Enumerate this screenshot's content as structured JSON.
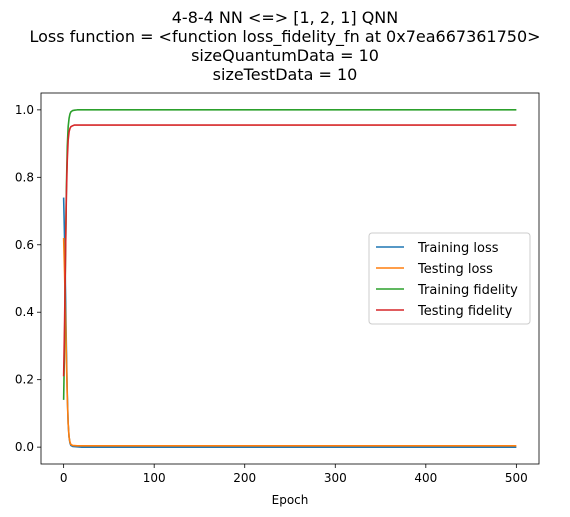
{
  "chart_data": {
    "type": "line",
    "title_lines": [
      "4-8-4 NN <=> [1, 2, 1] QNN",
      "Loss function = <function loss_fidelity_fn at 0x7ea667361750>",
      "sizeQuantumData = 10",
      "sizeTestData = 10"
    ],
    "xlabel": "Epoch",
    "ylabel": "",
    "xlim": [
      -25,
      525
    ],
    "ylim": [
      -0.05,
      1.05
    ],
    "xticks": [
      0,
      100,
      200,
      300,
      400,
      500
    ],
    "yticks": [
      0.0,
      0.2,
      0.4,
      0.6,
      0.8,
      1.0
    ],
    "ytick_labels": [
      "0.0",
      "0.2",
      "0.4",
      "0.6",
      "0.8",
      "1.0"
    ],
    "grid": false,
    "legend_position": "center-right",
    "series": [
      {
        "name": "Training loss",
        "color": "#1f77b4",
        "x": [
          0,
          1,
          2,
          3,
          4,
          5,
          6,
          7,
          8,
          10,
          15,
          20,
          50,
          100,
          200,
          300,
          400,
          500
        ],
        "y": [
          0.74,
          0.62,
          0.47,
          0.3,
          0.16,
          0.07,
          0.03,
          0.012,
          0.005,
          0.002,
          0.001,
          0.0,
          0.0,
          0.0,
          0.0,
          0.0,
          0.0,
          0.0
        ]
      },
      {
        "name": "Testing loss",
        "color": "#ff7f0e",
        "x": [
          0,
          1,
          2,
          3,
          4,
          5,
          6,
          7,
          8,
          10,
          15,
          20,
          50,
          100,
          200,
          300,
          400,
          500
        ],
        "y": [
          0.62,
          0.52,
          0.4,
          0.27,
          0.15,
          0.07,
          0.03,
          0.015,
          0.008,
          0.005,
          0.004,
          0.004,
          0.004,
          0.004,
          0.004,
          0.004,
          0.004,
          0.004
        ]
      },
      {
        "name": "Training fidelity",
        "color": "#2ca02c",
        "x": [
          0,
          1,
          2,
          3,
          4,
          5,
          6,
          7,
          8,
          10,
          12,
          15,
          20,
          50,
          100,
          200,
          300,
          400,
          500
        ],
        "y": [
          0.14,
          0.3,
          0.55,
          0.76,
          0.89,
          0.95,
          0.975,
          0.988,
          0.994,
          0.998,
          0.999,
          1.0,
          1.0,
          1.0,
          1.0,
          1.0,
          1.0,
          1.0,
          1.0
        ]
      },
      {
        "name": "Testing fidelity",
        "color": "#d62728",
        "x": [
          0,
          1,
          2,
          3,
          4,
          5,
          6,
          7,
          8,
          10,
          12,
          15,
          20,
          50,
          100,
          200,
          300,
          400,
          500
        ],
        "y": [
          0.21,
          0.36,
          0.56,
          0.74,
          0.85,
          0.91,
          0.935,
          0.945,
          0.95,
          0.953,
          0.955,
          0.955,
          0.955,
          0.955,
          0.955,
          0.955,
          0.955,
          0.955,
          0.955
        ]
      }
    ]
  }
}
